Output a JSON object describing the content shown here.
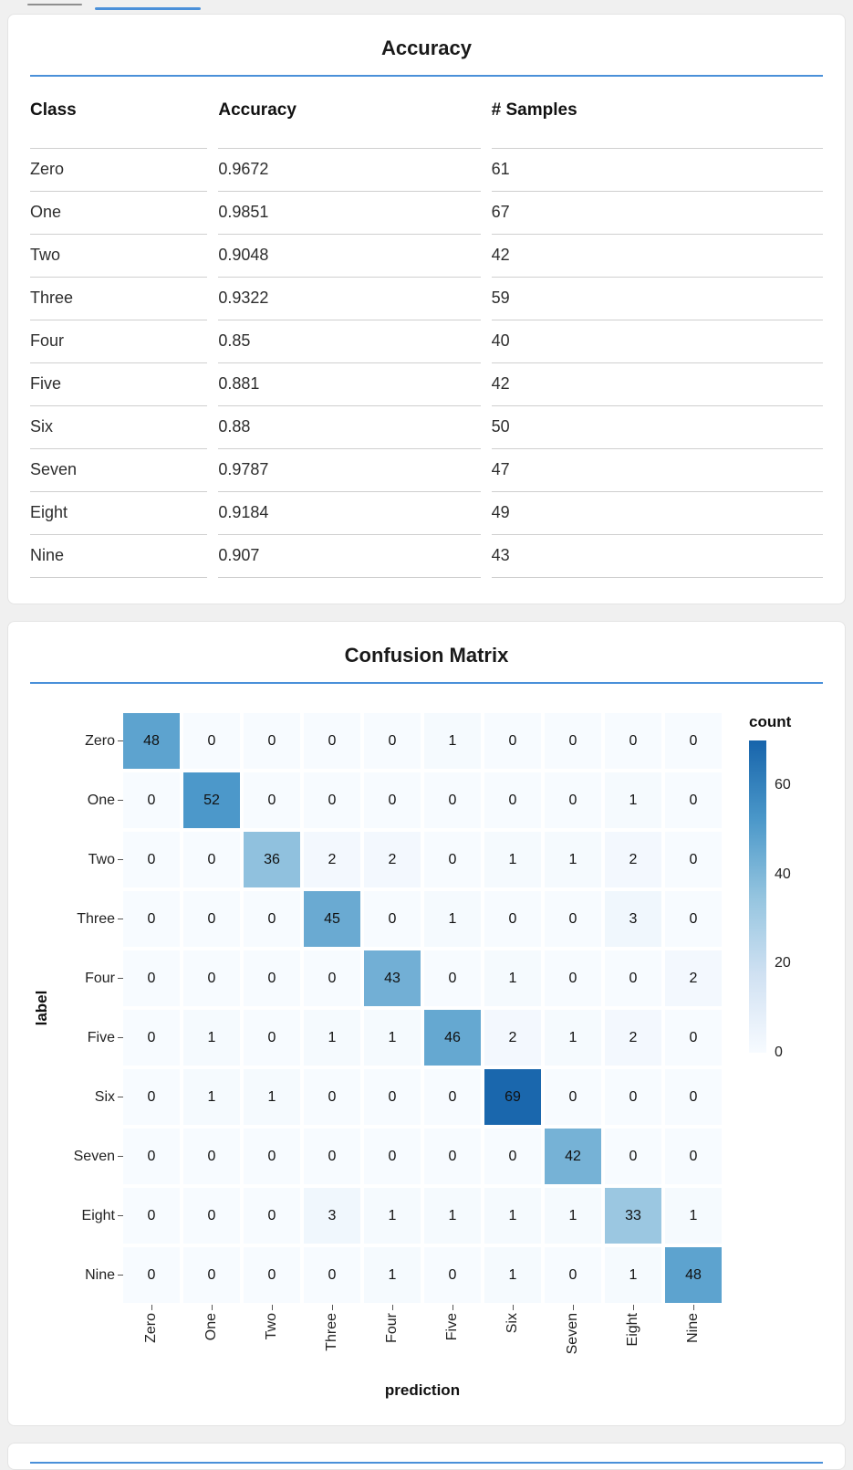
{
  "page": {
    "background": "#f0f0f0",
    "accent": "#4a90d9",
    "card_background": "#ffffff"
  },
  "chart_data": [
    {
      "type": "table",
      "title": "Accuracy",
      "columns": [
        "Class",
        "Accuracy",
        "# Samples"
      ],
      "rows": [
        [
          "Zero",
          "0.9672",
          "61"
        ],
        [
          "One",
          "0.9851",
          "67"
        ],
        [
          "Two",
          "0.9048",
          "42"
        ],
        [
          "Three",
          "0.9322",
          "59"
        ],
        [
          "Four",
          "0.85",
          "40"
        ],
        [
          "Five",
          "0.881",
          "42"
        ],
        [
          "Six",
          "0.88",
          "50"
        ],
        [
          "Seven",
          "0.9787",
          "47"
        ],
        [
          "Eight",
          "0.9184",
          "49"
        ],
        [
          "Nine",
          "0.907",
          "43"
        ]
      ]
    },
    {
      "type": "heatmap",
      "title": "Confusion Matrix",
      "x": [
        "Zero",
        "One",
        "Two",
        "Three",
        "Four",
        "Five",
        "Six",
        "Seven",
        "Eight",
        "Nine"
      ],
      "y": [
        "Zero",
        "One",
        "Two",
        "Three",
        "Four",
        "Five",
        "Six",
        "Seven",
        "Eight",
        "Nine"
      ],
      "values": [
        [
          48,
          0,
          0,
          0,
          0,
          1,
          0,
          0,
          0,
          0
        ],
        [
          0,
          52,
          0,
          0,
          0,
          0,
          0,
          0,
          1,
          0
        ],
        [
          0,
          0,
          36,
          2,
          2,
          0,
          1,
          1,
          2,
          0
        ],
        [
          0,
          0,
          0,
          45,
          0,
          1,
          0,
          0,
          3,
          0
        ],
        [
          0,
          0,
          0,
          0,
          43,
          0,
          1,
          0,
          0,
          2
        ],
        [
          0,
          1,
          0,
          1,
          1,
          46,
          2,
          1,
          2,
          0
        ],
        [
          0,
          1,
          1,
          0,
          0,
          0,
          69,
          0,
          0,
          0
        ],
        [
          0,
          0,
          0,
          0,
          0,
          0,
          0,
          42,
          0,
          0
        ],
        [
          0,
          0,
          0,
          3,
          1,
          1,
          1,
          1,
          33,
          1
        ],
        [
          0,
          0,
          0,
          0,
          1,
          0,
          1,
          0,
          1,
          48
        ]
      ],
      "xlabel": "prediction",
      "ylabel": "label",
      "legend": {
        "title": "count",
        "ticks": [
          60,
          40,
          20,
          0
        ],
        "domain": [
          0,
          70
        ],
        "position": "right"
      },
      "colors": {
        "scheme": "blues",
        "min": "#f7fbff",
        "max": "#1764ab"
      }
    }
  ]
}
